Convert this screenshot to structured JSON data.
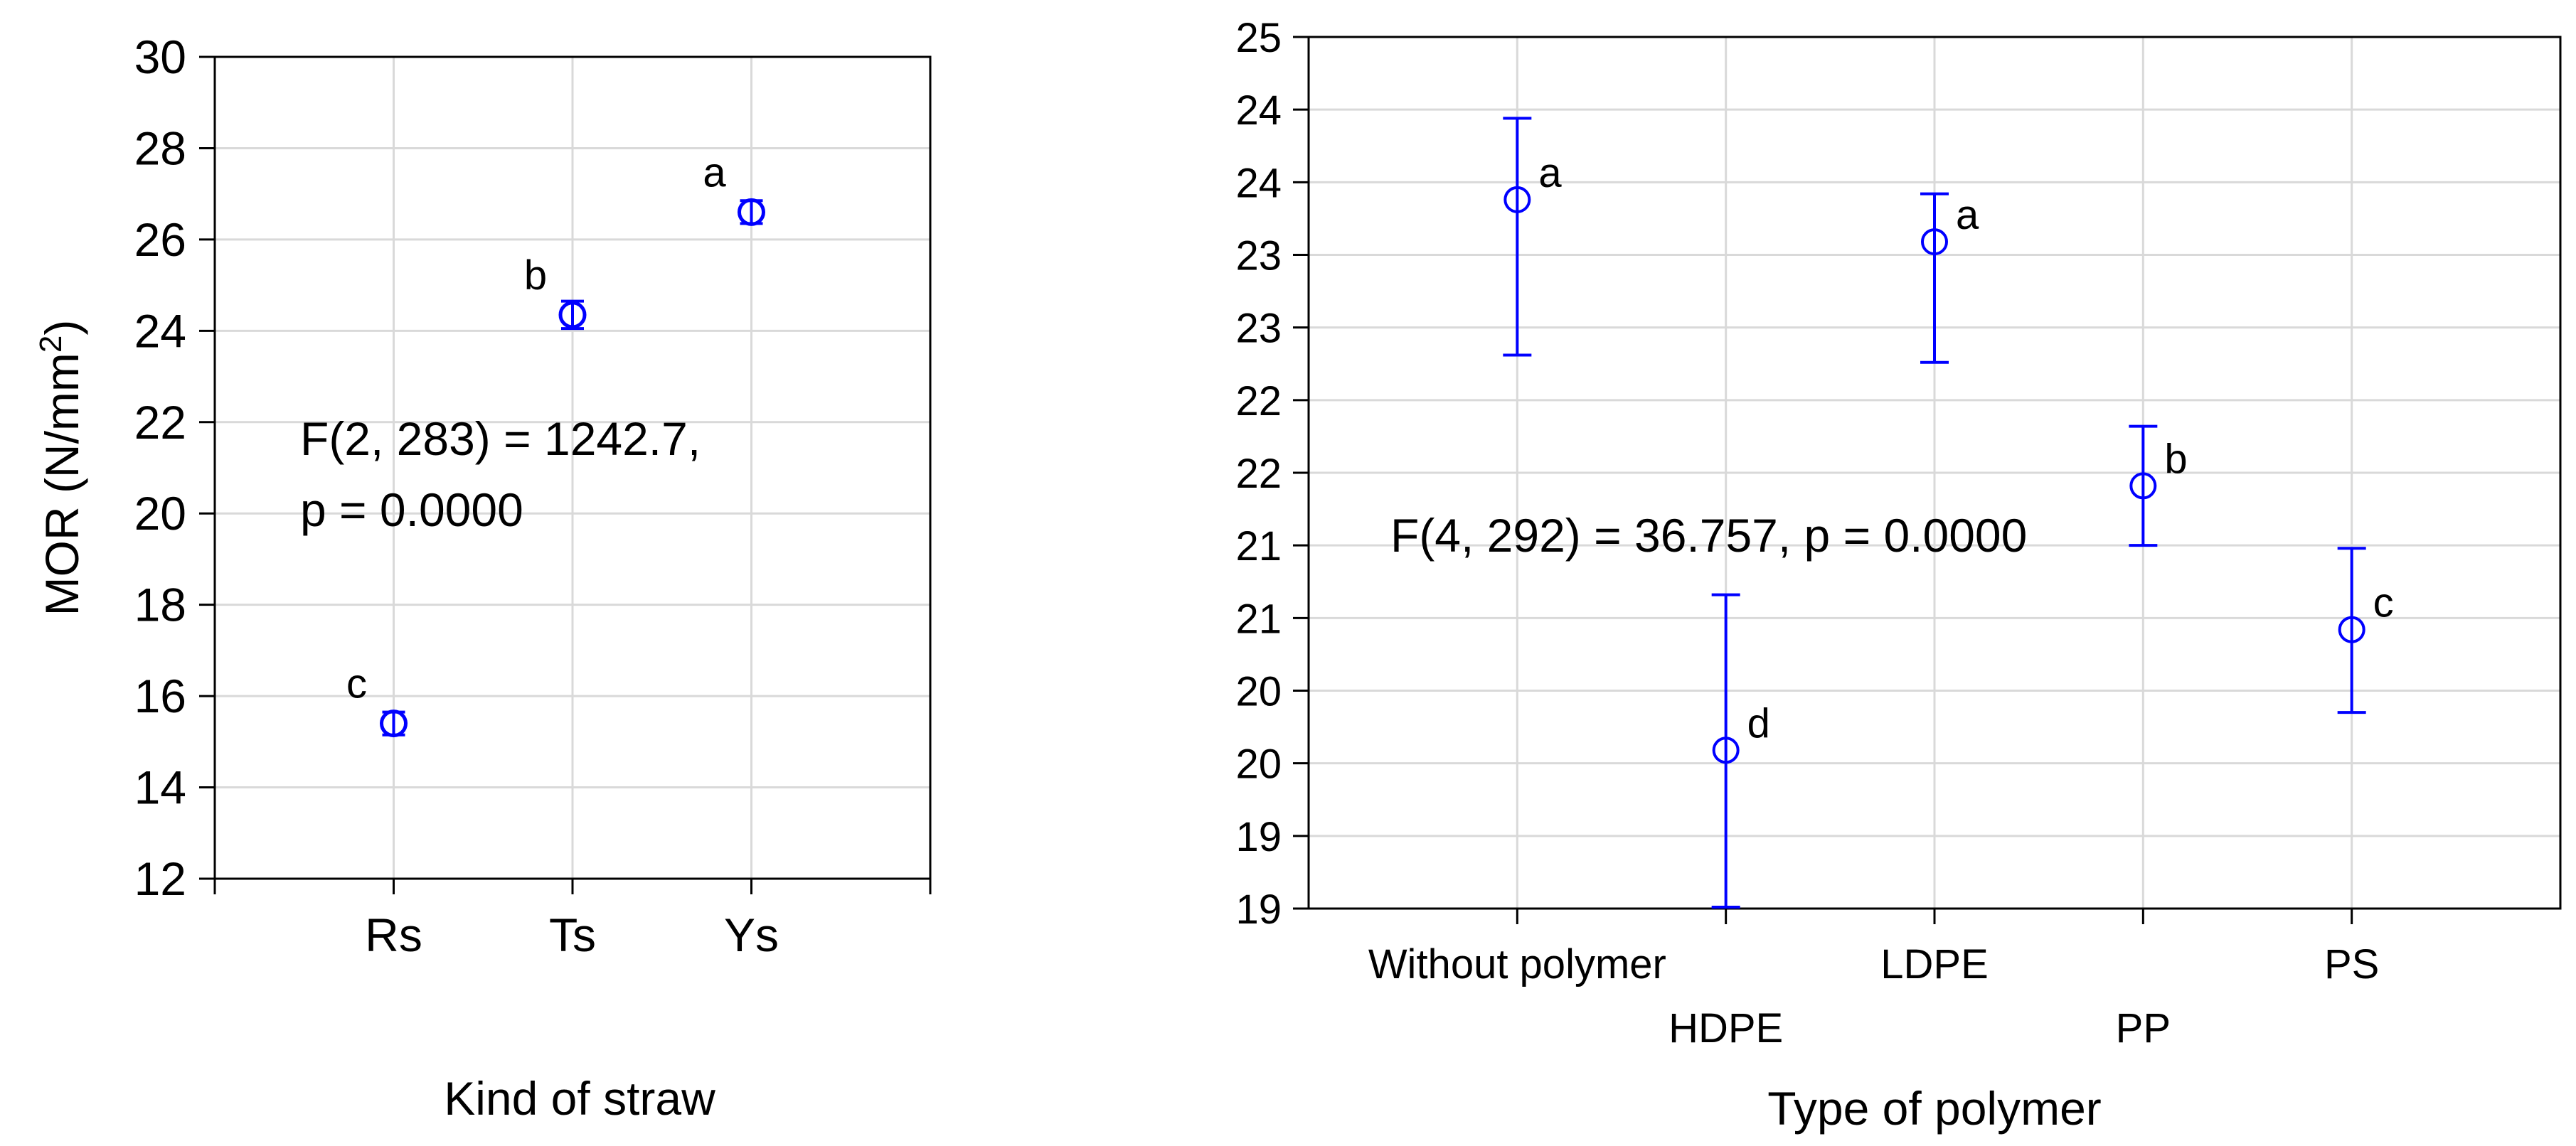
{
  "colors": {
    "marker": "#0000ff",
    "grid": "#d9d9d9",
    "axis": "#000000"
  },
  "chart_data": [
    {
      "type": "scatter",
      "title": "",
      "xlabel": "Kind of straw",
      "ylabel_main": "MOR (N/mm",
      "ylabel_sup": "2",
      "ylabel_close": ")",
      "categories": [
        "Rs",
        "Ts",
        "Ys"
      ],
      "values": [
        15.4,
        24.35,
        26.6
      ],
      "error_low": [
        15.15,
        24.05,
        26.35
      ],
      "error_high": [
        15.65,
        24.65,
        26.85
      ],
      "group_labels": [
        "c",
        "b",
        "a"
      ],
      "ylim": [
        12,
        30
      ],
      "y_ticks": [
        12,
        14,
        16,
        18,
        20,
        22,
        24,
        26,
        28,
        30
      ],
      "x_ticks": [
        "",
        "Rs",
        "Ts",
        "Ys",
        ""
      ],
      "grid": true,
      "annotation": [
        "F(2, 283) = 1242.7,",
        "p = 0.0000"
      ]
    },
    {
      "type": "scatter",
      "title": "",
      "xlabel": "Type of polymer",
      "categories": [
        "Without polymer",
        "HDPE",
        "LDPE",
        "PP",
        "PS"
      ],
      "values": [
        23.88,
        20.09,
        23.59,
        21.91,
        20.92
      ],
      "error_low": [
        22.81,
        19.01,
        22.76,
        21.5,
        20.35
      ],
      "error_high": [
        24.44,
        21.16,
        23.92,
        22.32,
        21.48
      ],
      "group_labels": [
        "a",
        "d",
        "a",
        "b",
        "c"
      ],
      "ylim": [
        19,
        25
      ],
      "y_ticks": [
        "19",
        "19",
        "20",
        "20",
        "21",
        "21",
        "22",
        "22",
        "23",
        "23",
        "24",
        "24",
        "25"
      ],
      "grid": true,
      "annotation": [
        "F(4, 292) = 36.757, p = 0.0000"
      ]
    }
  ]
}
